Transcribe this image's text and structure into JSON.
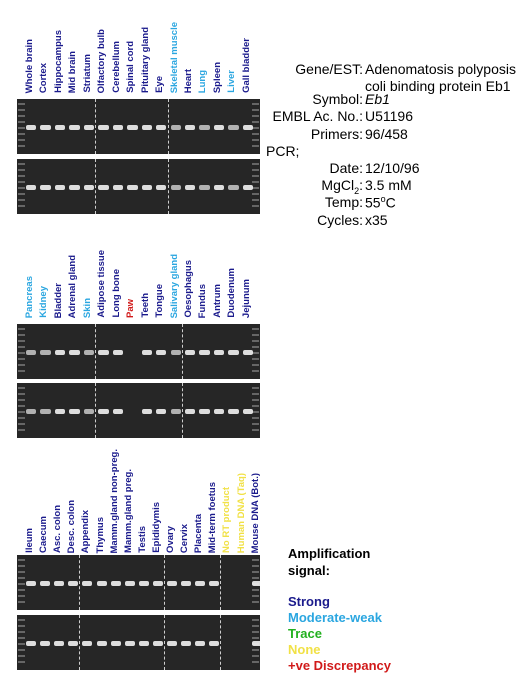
{
  "colors": {
    "strong": "#1a1a8c",
    "moderate_weak": "#2aa6e0",
    "trace": "#22b01f",
    "none": "#f1e146",
    "discrepancy": "#d11a1a"
  },
  "panels": [
    {
      "lanes": [
        {
          "label": "Whole brain",
          "signal": "strong"
        },
        {
          "label": "Cortex",
          "signal": "strong"
        },
        {
          "label": "Hippocampus",
          "signal": "strong"
        },
        {
          "label": "Mid brain",
          "signal": "strong"
        },
        {
          "label": "Striatum",
          "signal": "strong"
        },
        {
          "label": "Olfactory bulb",
          "signal": "strong"
        },
        {
          "label": "Cerebellum",
          "signal": "strong"
        },
        {
          "label": "Spinal cord",
          "signal": "strong"
        },
        {
          "label": "Pituitary gland",
          "signal": "strong"
        },
        {
          "label": "Eye",
          "signal": "strong"
        },
        {
          "label": "Skeletal muscle",
          "signal": "moderate_weak"
        },
        {
          "label": "Heart",
          "signal": "strong"
        },
        {
          "label": "Lung",
          "signal": "moderate_weak"
        },
        {
          "label": "Spleen",
          "signal": "strong"
        },
        {
          "label": "Liver",
          "signal": "moderate_weak"
        },
        {
          "label": "Gall bladder",
          "signal": "strong"
        }
      ]
    },
    {
      "lanes": [
        {
          "label": "Pancreas",
          "signal": "moderate_weak"
        },
        {
          "label": "Kidney",
          "signal": "moderate_weak"
        },
        {
          "label": "Bladder",
          "signal": "strong"
        },
        {
          "label": "Adrenal gland",
          "signal": "strong"
        },
        {
          "label": "Skin",
          "signal": "moderate_weak"
        },
        {
          "label": "Adipose tissue",
          "signal": "strong"
        },
        {
          "label": "Long bone",
          "signal": "strong"
        },
        {
          "label": "Paw",
          "signal": "discrepancy"
        },
        {
          "label": "Teeth",
          "signal": "strong"
        },
        {
          "label": "Tongue",
          "signal": "strong"
        },
        {
          "label": "Salivary gland",
          "signal": "moderate_weak"
        },
        {
          "label": "Oesophagus",
          "signal": "strong"
        },
        {
          "label": "Fundus",
          "signal": "strong"
        },
        {
          "label": "Antrum",
          "signal": "strong"
        },
        {
          "label": "Duodenum",
          "signal": "strong"
        },
        {
          "label": "Jejunum",
          "signal": "strong"
        }
      ]
    },
    {
      "lanes": [
        {
          "label": "Ileum",
          "signal": "strong"
        },
        {
          "label": "Caecum",
          "signal": "strong"
        },
        {
          "label": "Asc. colon",
          "signal": "strong"
        },
        {
          "label": "Desc. colon",
          "signal": "strong"
        },
        {
          "label": "Appendix",
          "signal": "strong"
        },
        {
          "label": "Thymus",
          "signal": "strong"
        },
        {
          "label": "Mamm.gland non-preg.",
          "signal": "strong"
        },
        {
          "label": "Mamm.gland preg.",
          "signal": "strong"
        },
        {
          "label": "Testis",
          "signal": "strong"
        },
        {
          "label": "Epididymis",
          "signal": "strong"
        },
        {
          "label": "Ovary",
          "signal": "strong"
        },
        {
          "label": "Cervix",
          "signal": "strong"
        },
        {
          "label": "Placenta",
          "signal": "strong"
        },
        {
          "label": "Mid-term foetus",
          "signal": "strong"
        },
        {
          "label": "No RT product",
          "signal": "none"
        },
        {
          "label": "Human DNA (Taq)",
          "signal": "none"
        },
        {
          "label": "Mouse DNA (Bot.)",
          "signal": "strong"
        }
      ]
    }
  ],
  "info": [
    {
      "label": "Gene/EST:",
      "value": "Adenomatosis polyposis coli binding protein Eb1"
    },
    {
      "label": "Symbol:",
      "value": "Eb1"
    },
    {
      "label": "EMBL Ac. No.:",
      "value": "U51196"
    },
    {
      "label": "Primers:",
      "value": "96/458"
    },
    {
      "label": "PCR;",
      "value": ""
    },
    {
      "label": "Date:",
      "value": "12/10/96"
    },
    {
      "label": "MgCl2:",
      "value": "3.5 mM"
    },
    {
      "label": "Temp:",
      "value": "55oC"
    },
    {
      "label": "Cycles:",
      "value": "x35"
    }
  ],
  "legend": {
    "title": "Amplification signal:",
    "items": [
      {
        "label": "Strong",
        "color": "strong"
      },
      {
        "label": "Moderate-weak",
        "color": "moderate_weak"
      },
      {
        "label": "Trace",
        "color": "trace"
      },
      {
        "label": "None",
        "color": "none"
      },
      {
        "label": "+ve Discrepancy",
        "color": "discrepancy"
      }
    ]
  }
}
